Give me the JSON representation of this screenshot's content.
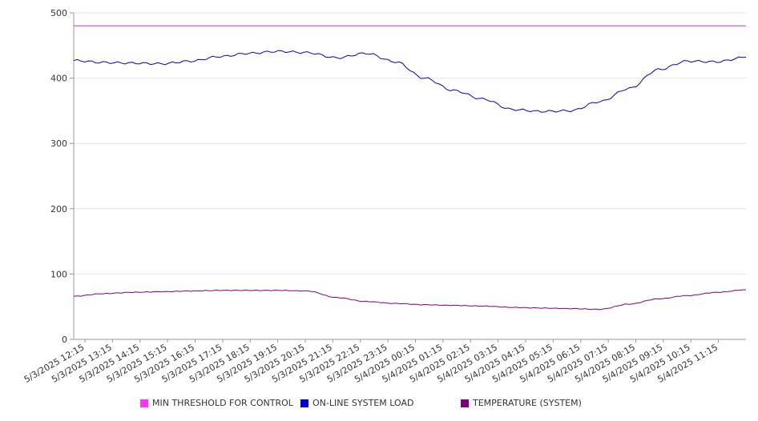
{
  "chart_data": {
    "type": "line",
    "ylim": [
      0,
      500
    ],
    "yticks": [
      0,
      100,
      200,
      300,
      400,
      500
    ],
    "x_tick_labels": [
      "5/3/2025 12:15",
      "5/3/2025 13:15",
      "5/3/2025 14:15",
      "5/3/2025 15:15",
      "5/3/2025 16:15",
      "5/3/2025 17:15",
      "5/3/2025 18:15",
      "5/3/2025 19:15",
      "5/3/2025 20:15",
      "5/3/2025 21:15",
      "5/3/2025 22:15",
      "5/3/2025 23:15",
      "5/4/2025 00:15",
      "5/4/2025 01:15",
      "5/4/2025 02:15",
      "5/4/2025 03:15",
      "5/4/2025 04:15",
      "5/4/2025 05:15",
      "5/4/2025 06:15",
      "5/4/2025 07:15",
      "5/4/2025 08:15",
      "5/4/2025 09:15",
      "5/4/2025 10:15",
      "5/4/2025 11:15"
    ],
    "grid": "horizontal",
    "legend_position": "bottom",
    "series": [
      {
        "name": "MIN THRESHOLD FOR CONTROL",
        "color": "#cc33cc",
        "values": [
          480,
          480,
          480,
          480,
          480,
          480,
          480,
          480,
          480,
          480,
          480,
          480,
          480,
          480,
          480,
          480,
          480,
          480,
          480,
          480,
          480,
          480,
          480,
          480
        ]
      },
      {
        "name": "ON-LINE SYSTEM LOAD",
        "color": "#0000cc",
        "values": [
          427,
          424,
          423,
          422,
          426,
          433,
          438,
          441,
          439,
          431,
          438,
          425,
          400,
          381,
          368,
          352,
          349,
          350,
          364,
          384,
          413,
          426,
          425,
          432
        ]
      },
      {
        "name": "TEMPERATURE (SYSTEM)",
        "color": "#800080",
        "values": [
          66,
          70,
          72,
          73,
          74,
          75,
          75,
          75,
          74,
          64,
          58,
          55,
          53,
          52,
          51,
          49,
          48,
          47,
          46,
          54,
          62,
          67,
          72,
          76
        ]
      }
    ]
  },
  "legend": {
    "items": [
      {
        "label": "MIN THRESHOLD FOR CONTROL",
        "color": "#ff33ff"
      },
      {
        "label": "ON-LINE SYSTEM LOAD",
        "color": "#0000dd"
      },
      {
        "label": "TEMPERATURE (SYSTEM)",
        "color": "#800080"
      }
    ]
  }
}
